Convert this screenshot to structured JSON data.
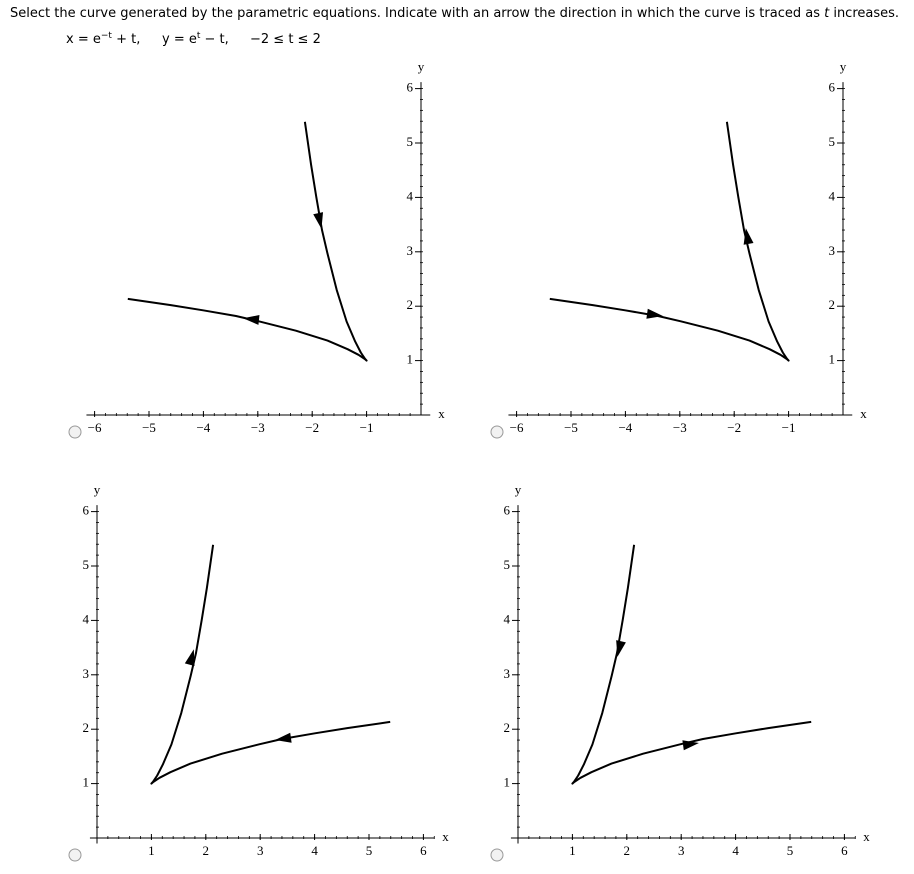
{
  "question": {
    "prefix": "Select the curve generated by the parametric equations. Indicate with an arrow the direction in which the curve is traced as ",
    "variable": "t",
    "suffix": " increases."
  },
  "equation": {
    "x_base": "x = e",
    "x_exp": "−t",
    "x_rest": " + t,",
    "y_base": "y = e",
    "y_exp": "t",
    "y_rest": " − t,",
    "range": "−2 ≤ t ≤ 2"
  },
  "options": [
    {
      "x_label": "x",
      "y_label": "y",
      "xticks": [
        {
          "value": -6,
          "label": "−6"
        },
        {
          "value": -5,
          "label": "−5"
        },
        {
          "value": -4,
          "label": "−4"
        },
        {
          "value": -3,
          "label": "−3"
        },
        {
          "value": -2,
          "label": "−2"
        },
        {
          "value": -1,
          "label": "−1"
        }
      ],
      "yticks": [
        1,
        2,
        3,
        4,
        5,
        6
      ]
    },
    {
      "x_label": "x",
      "y_label": "y",
      "xticks": [
        {
          "value": -6,
          "label": "−6"
        },
        {
          "value": -5,
          "label": "−5"
        },
        {
          "value": -4,
          "label": "−4"
        },
        {
          "value": -3,
          "label": "−3"
        },
        {
          "value": -2,
          "label": "−2"
        },
        {
          "value": -1,
          "label": "−1"
        }
      ],
      "yticks": [
        1,
        2,
        3,
        4,
        5,
        6
      ]
    },
    {
      "x_label": "x",
      "y_label": "y",
      "xticks": [
        1,
        2,
        3,
        4,
        5,
        6
      ],
      "yticks": [
        1,
        2,
        3,
        4,
        5,
        6
      ]
    },
    {
      "x_label": "x",
      "y_label": "y",
      "xticks": [
        1,
        2,
        3,
        4,
        5,
        6
      ],
      "yticks": [
        1,
        2,
        3,
        4,
        5,
        6
      ]
    }
  ]
}
